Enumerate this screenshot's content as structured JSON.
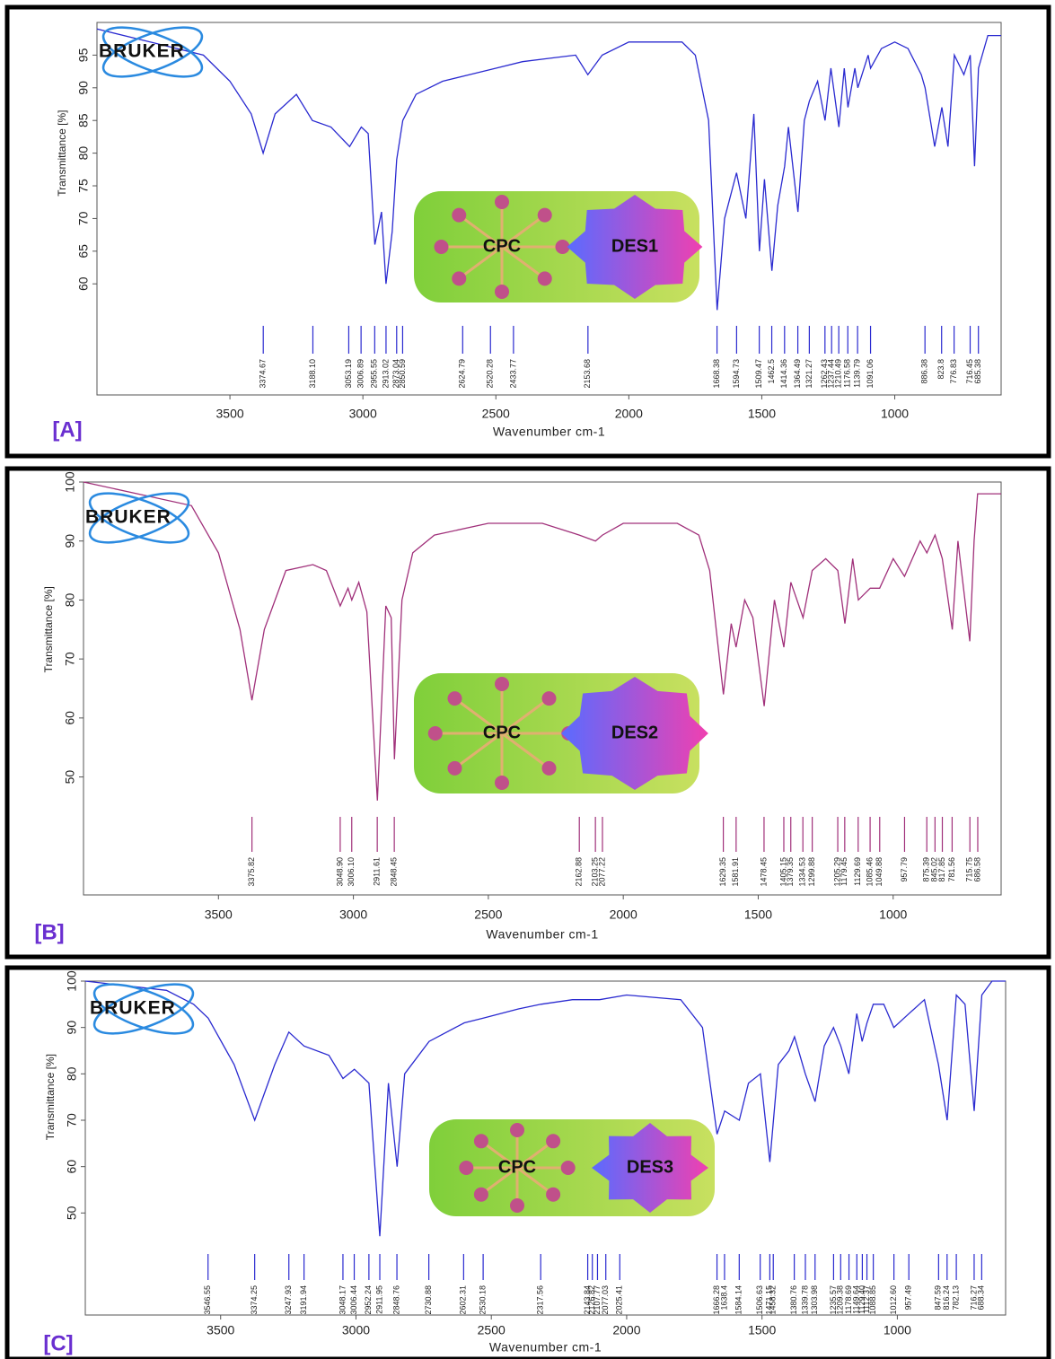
{
  "chart_data": [
    {
      "type": "line",
      "panel_label": "[A]",
      "logo": "BRUKER",
      "badge": {
        "left": "CPC",
        "right": "DES1"
      },
      "y_label": "Transmittance [%]",
      "x_label": "Wavenumber cm-1",
      "color": "#2a2ad0",
      "xlim": [
        4000,
        600
      ],
      "xticks": [
        3500,
        3000,
        2500,
        2000,
        1500,
        1000
      ],
      "ylim": [
        43,
        100
      ],
      "yticks": [
        60,
        65,
        70,
        75,
        80,
        85,
        90,
        95
      ],
      "x": [
        4000,
        3800,
        3600,
        3500,
        3420,
        3375,
        3330,
        3250,
        3190,
        3120,
        3050,
        3006,
        2980,
        2955,
        2930,
        2913,
        2890,
        2873,
        2850,
        2800,
        2700,
        2600,
        2500,
        2400,
        2300,
        2200,
        2154,
        2100,
        2000,
        1900,
        1800,
        1750,
        1700,
        1668,
        1640,
        1595,
        1560,
        1530,
        1509,
        1490,
        1462,
        1440,
        1414,
        1400,
        1364,
        1340,
        1321,
        1290,
        1262,
        1240,
        1210,
        1190,
        1176,
        1150,
        1139,
        1100,
        1091,
        1050,
        1000,
        950,
        900,
        886,
        850,
        823,
        800,
        776,
        740,
        716,
        700,
        685,
        650,
        600
      ],
      "values": [
        99,
        97,
        95,
        91,
        86,
        80,
        86,
        89,
        85,
        84,
        81,
        84,
        83,
        66,
        71,
        60,
        68,
        79,
        85,
        89,
        91,
        92,
        93,
        94,
        94.5,
        95,
        92,
        95,
        97,
        97,
        97,
        95,
        85,
        56,
        70,
        77,
        70,
        86,
        65,
        76,
        62,
        72,
        78,
        84,
        71,
        85,
        88,
        91,
        85,
        93,
        84,
        93,
        87,
        93,
        90,
        95,
        93,
        96,
        97,
        96,
        92,
        90,
        81,
        87,
        81,
        95,
        92,
        95,
        78,
        93,
        98,
        98
      ],
      "peaks": [
        3374.67,
        {
          "value": 3188.1,
          "label": "3188.10"
        },
        3053.19,
        3006.89,
        2955.55,
        2913.02,
        2873.04,
        2850.59,
        2624.79,
        2520.28,
        2433.77,
        2153.68,
        1668.38,
        1594.73,
        1509.47,
        1462.5,
        1414.36,
        1364.49,
        1321.27,
        1262.43,
        1237.44,
        1210.49,
        1176.58,
        1139.79,
        1091.06,
        886.38,
        823.8,
        776.83,
        716.45,
        685.38
      ]
    },
    {
      "type": "line",
      "panel_label": "[B]",
      "logo": "BRUKER",
      "badge": {
        "left": "CPC",
        "right": "DES2"
      },
      "y_label": "Transmittance [%]",
      "x_label": "Wavenumber cm-1",
      "color": "#a0307a",
      "xlim": [
        4000,
        600
      ],
      "xticks": [
        3500,
        3000,
        2500,
        2000,
        1500,
        1000
      ],
      "ylim": [
        30,
        100
      ],
      "yticks": [
        50,
        60,
        70,
        80,
        90,
        100
      ],
      "x": [
        4000,
        3800,
        3600,
        3500,
        3420,
        3376,
        3330,
        3250,
        3150,
        3100,
        3049,
        3020,
        3006,
        2980,
        2950,
        2911,
        2880,
        2860,
        2848,
        2820,
        2780,
        2700,
        2500,
        2300,
        2163,
        2103,
        2077,
        2000,
        1800,
        1720,
        1680,
        1629,
        1600,
        1582,
        1550,
        1520,
        1478,
        1440,
        1405,
        1379,
        1334,
        1300,
        1250,
        1205,
        1179,
        1150,
        1129,
        1085,
        1050,
        1000,
        958,
        900,
        875,
        845,
        818,
        781,
        760,
        716,
        700,
        687,
        650,
        600
      ],
      "values": [
        100,
        98,
        96,
        88,
        75,
        63,
        75,
        85,
        86,
        85,
        79,
        82,
        80,
        83,
        78,
        46,
        79,
        77,
        53,
        80,
        88,
        91,
        93,
        93,
        91,
        90,
        91,
        93,
        93,
        91,
        85,
        64,
        76,
        72,
        80,
        77,
        62,
        80,
        72,
        83,
        77,
        85,
        87,
        85,
        76,
        87,
        80,
        82,
        82,
        87,
        84,
        90,
        88,
        91,
        87,
        75,
        90,
        73,
        90,
        98,
        98,
        98
      ],
      "peaks": [
        3375.82,
        {
          "value": 3048.9,
          "label": "3048.90"
        },
        {
          "value": 3006.1,
          "label": "3006.10"
        },
        2911.61,
        2848.45,
        2162.88,
        2103.25,
        2077.22,
        1629.35,
        1581.91,
        1478.45,
        1405.15,
        1379.35,
        1334.53,
        1299.88,
        1205.29,
        1179.45,
        1129.69,
        1085.46,
        1049.88,
        957.79,
        875.39,
        845.02,
        817.85,
        781.56,
        715.75,
        686.58
      ]
    },
    {
      "type": "line",
      "panel_label": "[C]",
      "logo": "BRUKER",
      "badge": {
        "left": "CPC",
        "right": "DES3"
      },
      "y_label": "Transmittance [%]",
      "x_label": "Wavenumber cm-1",
      "color": "#2a2ad0",
      "xlim": [
        4000,
        600
      ],
      "xticks": [
        3500,
        3000,
        2500,
        2000,
        1500,
        1000
      ],
      "ylim": [
        28,
        100
      ],
      "yticks": [
        50,
        60,
        70,
        80,
        90,
        100
      ],
      "x": [
        4000,
        3700,
        3600,
        3546,
        3450,
        3374,
        3300,
        3248,
        3192,
        3100,
        3048,
        3006,
        2952,
        2912,
        2880,
        2848,
        2820,
        2730,
        2600,
        2530,
        2400,
        2317,
        2200,
        2100,
        2000,
        1800,
        1720,
        1666,
        1638,
        1584,
        1550,
        1506,
        1471,
        1440,
        1400,
        1380,
        1340,
        1304,
        1270,
        1236,
        1209,
        1179,
        1150,
        1130,
        1112,
        1089,
        1050,
        1013,
        957,
        900,
        848,
        816,
        782,
        750,
        716,
        688,
        650,
        600
      ],
      "values": [
        100,
        98,
        95,
        92,
        82,
        70,
        82,
        89,
        86,
        84,
        79,
        81,
        78,
        45,
        78,
        60,
        80,
        87,
        91,
        92,
        94,
        95,
        96,
        96,
        97,
        96,
        90,
        67,
        72,
        70,
        78,
        80,
        61,
        82,
        85,
        88,
        80,
        74,
        86,
        90,
        86,
        80,
        93,
        87,
        91,
        95,
        95,
        90,
        93,
        96,
        82,
        70,
        97,
        95,
        72,
        97,
        100,
        100
      ],
      "peaks": [
        3546.55,
        3374.25,
        3247.93,
        3191.94,
        3048.17,
        3006.44,
        2952.24,
        2911.95,
        2848.76,
        2730.88,
        2602.31,
        2530.18,
        2317.56,
        2143.84,
        2126.82,
        2107.77,
        2077.03,
        2025.41,
        1666.28,
        1638.4,
        1584.14,
        1506.63,
        1471.15,
        1458.32,
        1380.76,
        1339.78,
        1303.98,
        1235.57,
        1209.38,
        1178.69,
        1149.64,
        {
          "value": 1129.4,
          "label": "1129.40"
        },
        1112.37,
        1088.85,
        {
          "value": 1012.6,
          "label": "1012.60"
        },
        957.49,
        847.59,
        816.24,
        782.13,
        716.27,
        688.34
      ]
    }
  ]
}
